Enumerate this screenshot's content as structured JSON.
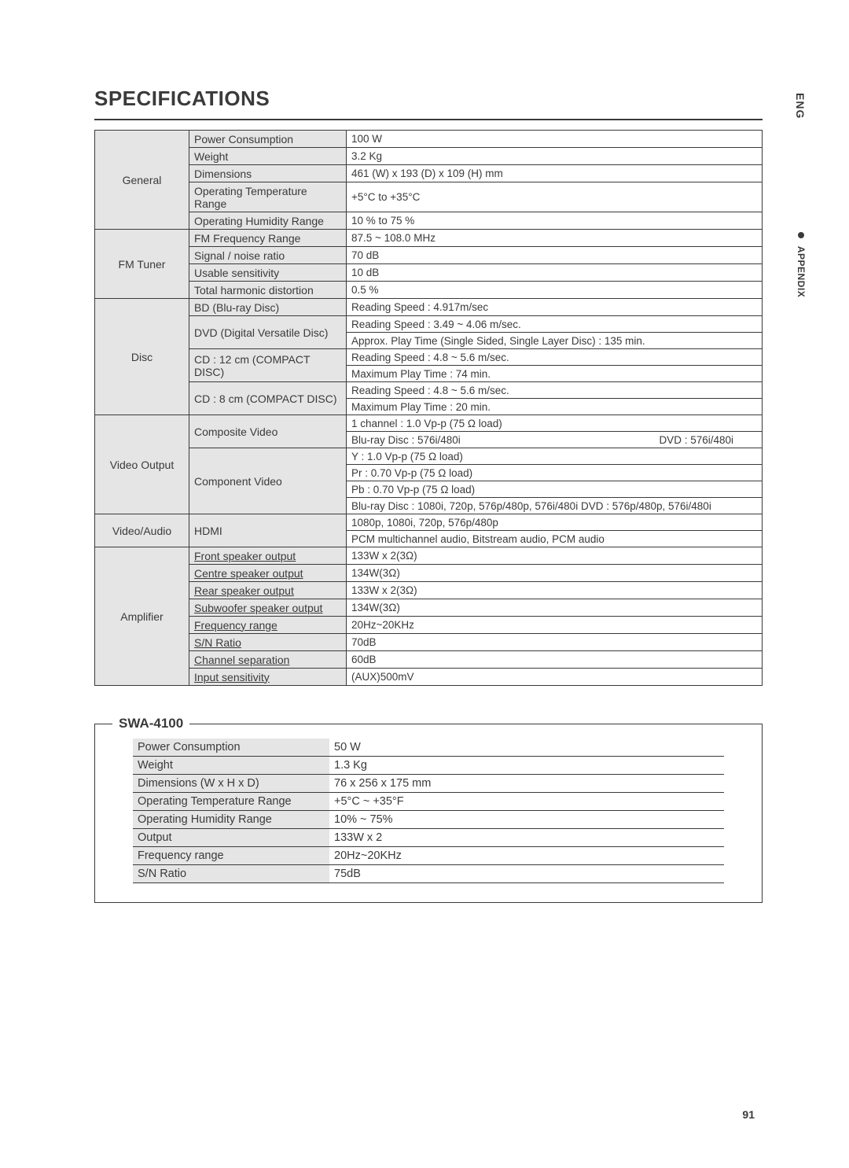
{
  "title": "SPECIFICATIONS",
  "side": {
    "lang": "ENG",
    "appendix": "APPENDIX"
  },
  "pageNumber": "91",
  "specs": [
    {
      "category": "General",
      "rows": [
        {
          "param": "Power Consumption",
          "values": [
            "100 W"
          ]
        },
        {
          "param": "Weight",
          "values": [
            "3.2 Kg"
          ]
        },
        {
          "param": "Dimensions",
          "values": [
            "461 (W) x 193 (D) x 109 (H) mm"
          ]
        },
        {
          "param": "Operating Temperature Range",
          "values": [
            "+5°C to +35°C"
          ]
        },
        {
          "param": "Operating Humidity Range",
          "values": [
            "10 % to 75 %"
          ]
        }
      ]
    },
    {
      "category": "FM Tuner",
      "rows": [
        {
          "param": "FM Frequency Range",
          "values": [
            "87.5 ~ 108.0 MHz"
          ]
        },
        {
          "param": "Signal / noise ratio",
          "values": [
            "70 dB"
          ]
        },
        {
          "param": "Usable sensitivity",
          "values": [
            "10 dB"
          ]
        },
        {
          "param": "Total harmonic distortion",
          "values": [
            "0.5 %"
          ]
        }
      ]
    },
    {
      "category": "Disc",
      "rows": [
        {
          "param": "BD (Blu-ray Disc)",
          "values": [
            "Reading Speed : 4.917m/sec"
          ]
        },
        {
          "param": "DVD (Digital Versatile Disc)",
          "values": [
            "Reading Speed : 3.49 ~ 4.06 m/sec.",
            "Approx. Play Time (Single Sided, Single Layer Disc) : 135 min."
          ]
        },
        {
          "param": "CD : 12 cm (COMPACT DISC)",
          "values": [
            "Reading Speed : 4.8 ~ 5.6 m/sec.",
            "Maximum Play Time : 74 min."
          ]
        },
        {
          "param": "CD : 8 cm (COMPACT DISC)",
          "values": [
            "Reading Speed : 4.8 ~ 5.6 m/sec.",
            "Maximum Play Time : 20 min."
          ]
        }
      ]
    },
    {
      "category": "Video Output",
      "rows": [
        {
          "param": "Composite Video",
          "values": [
            "1 channel : 1.0 Vp-p (75 Ω load)",
            "__split__Blu-ray Disc : 576i/480i|DVD : 576i/480i"
          ]
        },
        {
          "param": "Component Video",
          "values": [
            "Y : 1.0 Vp-p (75 Ω load)",
            "Pr : 0.70 Vp-p (75 Ω load)",
            "Pb : 0.70 Vp-p (75 Ω load)",
            "__small__Blu-ray Disc : 1080i, 720p, 576p/480p, 576i/480i  DVD : 576p/480p, 576i/480i"
          ]
        }
      ]
    },
    {
      "category": "Video/Audio",
      "rows": [
        {
          "param": "HDMI",
          "values": [
            "1080p, 1080i, 720p, 576p/480p",
            "PCM multichannel audio, Bitstream audio, PCM audio"
          ]
        }
      ]
    },
    {
      "category": "Amplifier",
      "rows": [
        {
          "param": "Front speaker output",
          "underline": true,
          "values": [
            "133W x 2(3Ω)"
          ]
        },
        {
          "param": "Centre speaker output",
          "underline": true,
          "values": [
            "134W(3Ω)"
          ]
        },
        {
          "param": "Rear speaker output",
          "underline": true,
          "values": [
            "133W x 2(3Ω)"
          ]
        },
        {
          "param": "Subwoofer speaker output",
          "underline": true,
          "values": [
            "134W(3Ω)"
          ]
        },
        {
          "param": "Frequency range",
          "underline": true,
          "values": [
            "20Hz~20KHz"
          ]
        },
        {
          "param": "S/N Ratio",
          "underline": true,
          "values": [
            "70dB"
          ]
        },
        {
          "param": "Channel separation",
          "underline": true,
          "values": [
            "60dB"
          ]
        },
        {
          "param": "Input sensitivity",
          "underline": true,
          "values": [
            "(AUX)500mV"
          ]
        }
      ]
    }
  ],
  "swa": {
    "title": "SWA-4100",
    "rows": [
      {
        "param": "Power Consumption",
        "value": "50 W"
      },
      {
        "param": "Weight",
        "value": "1.3 Kg"
      },
      {
        "param": "Dimensions (W x H x D)",
        "value": "76 x 256 x 175 mm"
      },
      {
        "param": "Operating Temperature Range",
        "value": "+5°C ~ +35°F"
      },
      {
        "param": "Operating Humidity Range",
        "value": "10% ~ 75%"
      },
      {
        "param": "Output",
        "value": "133W x 2"
      },
      {
        "param": "Frequency range",
        "value": "20Hz~20KHz"
      },
      {
        "param": "S/N Ratio",
        "value": "75dB"
      }
    ]
  }
}
